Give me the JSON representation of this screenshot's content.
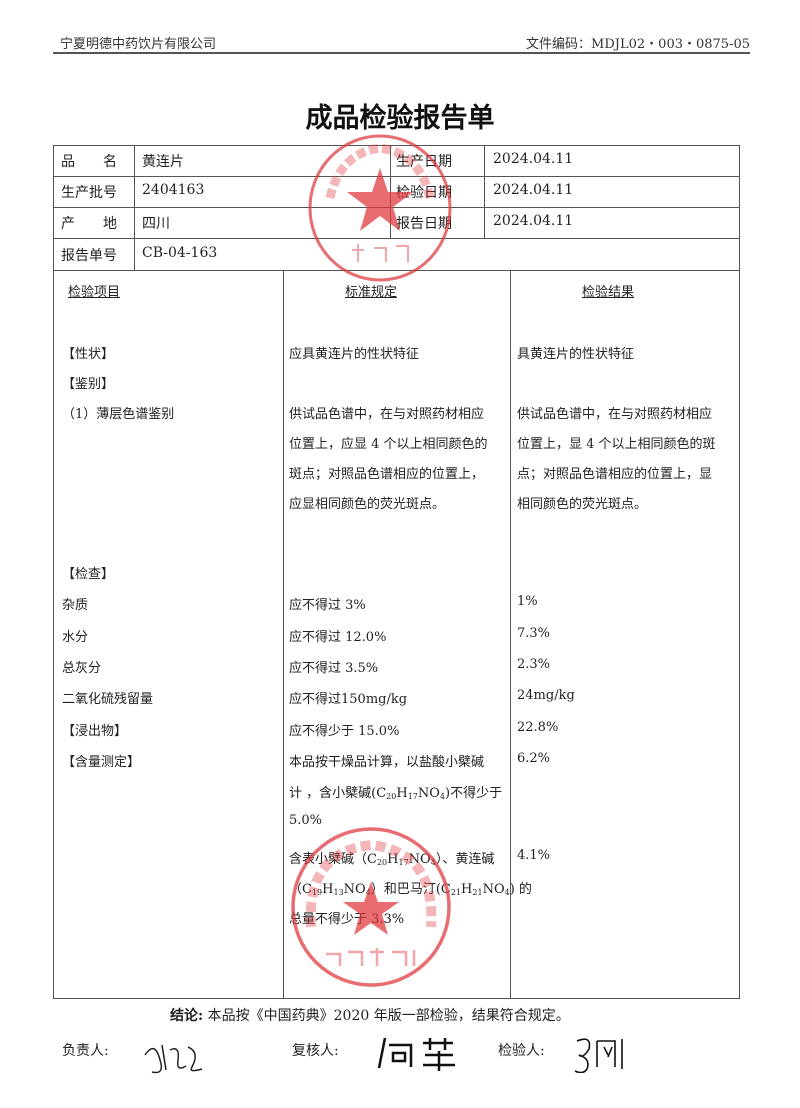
{
  "header": {
    "company": "宁夏明德中药饮片有限公司",
    "doc_code": "文件编码：MDJL02・003・0875-05"
  },
  "title": "成品检验报告单",
  "info": {
    "product_label": "品　　名",
    "product": "黄连片",
    "batch_label": "生产批号",
    "batch": "2404163",
    "origin_label": "产　　地",
    "origin": "四川",
    "report_no_label": "报告单号",
    "report_no": "CB-04-163",
    "prod_date_label": "生产日期",
    "prod_date": "2024.04.11",
    "test_date_label": "检验日期",
    "test_date": "2024.04.11",
    "report_date_label": "报告日期",
    "report_date": "2024.04.11"
  },
  "columns": {
    "item": "检验项目",
    "standard": "标准规定",
    "result": "检验结果"
  },
  "rows": [
    {
      "item": "【性状】",
      "standard": [
        "应具黄连片的性状特征"
      ],
      "result": [
        "具黄连片的性状特征"
      ]
    },
    {
      "item": "【鉴别】",
      "standard": [],
      "result": []
    },
    {
      "item": "（1）薄层色谱鉴别",
      "standard": [
        "供试品色谱中，在与对照药材相应",
        "位置上，应显 4 个以上相同颜色的",
        "斑点；对照品色谱相应的位置上，",
        "应显相同颜色的荧光斑点。"
      ],
      "result": [
        "供试品色谱中，在与对照药材相应",
        "位置上，显 4 个以上相同颜色的斑",
        "点；对照品色谱相应的位置上，显",
        "相同颜色的荧光斑点。"
      ]
    },
    {
      "item": "【检查】",
      "standard": [],
      "result": []
    },
    {
      "item": "杂质",
      "standard": [
        "应不得过 3%"
      ],
      "result": [
        "1%"
      ]
    },
    {
      "item": "水分",
      "standard": [
        "应不得过 12.0%"
      ],
      "result": [
        "7.3%"
      ]
    },
    {
      "item": "总灰分",
      "standard": [
        "应不得过 3.5%"
      ],
      "result": [
        "2.3%"
      ]
    },
    {
      "item": "二氧化硫残留量",
      "standard": [
        "应不得过150mg/kg"
      ],
      "result": [
        "24mg/kg"
      ]
    },
    {
      "item": "【浸出物】",
      "standard": [
        "应不得少于 15.0%"
      ],
      "result": [
        "22.8%"
      ]
    },
    {
      "item": "【含量测定】",
      "standard": [
        "本品按干燥品计算，以盐酸小檗碱",
        "计 ，含小檗碱(C20H17NO4)不得少于",
        "5.0%"
      ],
      "result": [
        "6.2%"
      ]
    },
    {
      "item": "",
      "standard": [
        "含表小檗碱（C20H17NO4）、黄连碱",
        "（C19H13NO4）和巴马汀(C21H21NO4) 的",
        "总量不得少于 3.3%"
      ],
      "result": [
        "4.1%"
      ]
    }
  ],
  "conclusion": {
    "label": "结论:",
    "text": "本品按《中国药典》2020 年版一部检验，结果符合规定。"
  },
  "signatures": {
    "responsible": "负责人:",
    "reviewer": "复核人:",
    "inspector": "检验人:"
  },
  "stamps": {
    "top": {
      "ring": "宁夏明德中药饮片有限公司",
      "center": "质 量 部"
    },
    "bottom": {
      "ring": "宁夏明德中药饮片有限公司",
      "center": "质检专用章"
    },
    "color": "#e0353a"
  }
}
